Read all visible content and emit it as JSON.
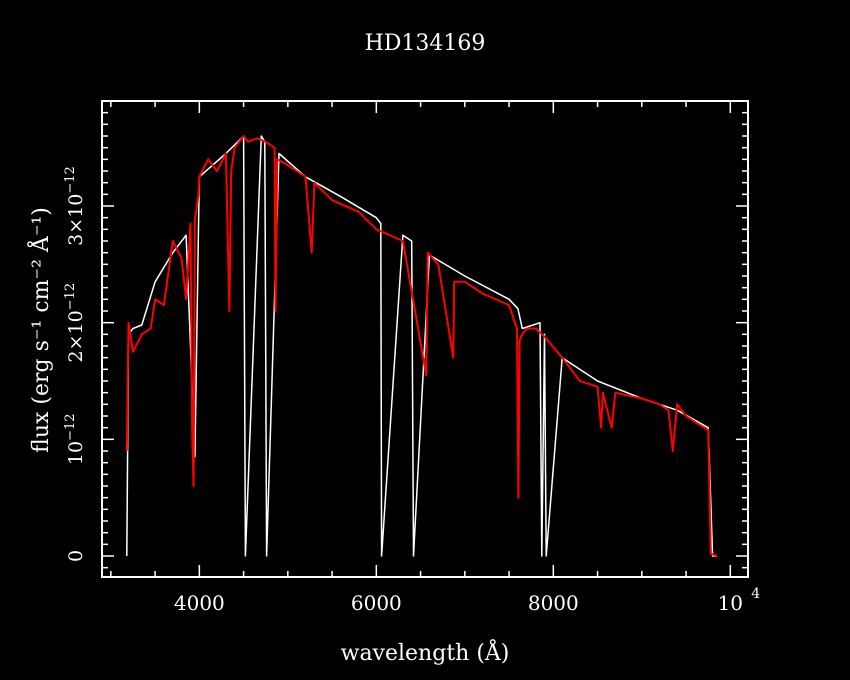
{
  "chart_data": {
    "type": "line",
    "title": "HD134169",
    "xlabel": "wavelength (Å)",
    "ylabel": "flux (erg s⁻¹ cm⁻² Å⁻¹)",
    "xlim": [
      2900,
      10200
    ],
    "ylim": [
      -1.8e-13,
      3.9e-12
    ],
    "x_ticks": [
      {
        "value": 4000,
        "label": "4000"
      },
      {
        "value": 6000,
        "label": "6000"
      },
      {
        "value": 8000,
        "label": "8000"
      },
      {
        "value": 10000,
        "label": "10",
        "exponent": "4"
      }
    ],
    "y_ticks": [
      {
        "value": 0,
        "label": "0"
      },
      {
        "value": 1e-12,
        "label": "10",
        "exponent": "−12"
      },
      {
        "value": 2e-12,
        "label": "2×10",
        "exponent": "−12"
      },
      {
        "value": 3e-12,
        "label": "3×10",
        "exponent": "−12"
      }
    ],
    "grid": false,
    "background": "#000000",
    "axis_color": "#ffffff",
    "series": [
      {
        "color": "#ffffff",
        "x": [
          3180,
          3200,
          3250,
          3350,
          3500,
          3700,
          3850,
          3950,
          4000,
          4150,
          4300,
          4500,
          4520,
          4700,
          4740,
          4760,
          4900,
          5200,
          5600,
          6000,
          6050,
          6060,
          6300,
          6400,
          6420,
          6600,
          7000,
          7500,
          7600,
          7650,
          7850,
          7870,
          7900,
          7920,
          8100,
          8500,
          9000,
          9400,
          9750,
          9800,
          9850
        ],
        "y": [
          0,
          1.9e-12,
          1.95e-12,
          1.98e-12,
          2.35e-12,
          2.6e-12,
          2.75e-12,
          8.5e-13,
          3.25e-12,
          3.35e-12,
          3.45e-12,
          3.6e-12,
          0,
          3.6e-12,
          3.55e-12,
          0,
          3.45e-12,
          3.25e-12,
          3.08e-12,
          2.9e-12,
          2.85e-12,
          0,
          2.75e-12,
          2.7e-12,
          0,
          2.58e-12,
          2.4e-12,
          2.2e-12,
          2.12e-12,
          1.95e-12,
          2e-12,
          0,
          1.9e-12,
          0,
          1.7e-12,
          1.5e-12,
          1.35e-12,
          1.25e-12,
          1.1e-12,
          0,
          0
        ]
      },
      {
        "color": "#ff0000",
        "x": [
          3180,
          3200,
          3250,
          3350,
          3450,
          3500,
          3600,
          3700,
          3800,
          3850,
          3900,
          3920,
          3935,
          3950,
          3965,
          3990,
          4000,
          4100,
          4200,
          4300,
          4340,
          4360,
          4400,
          4500,
          4550,
          4650,
          4750,
          4850,
          4861,
          4880,
          5000,
          5200,
          5270,
          5300,
          5500,
          5800,
          6000,
          6300,
          6563,
          6580,
          6700,
          6870,
          6880,
          7000,
          7200,
          7500,
          7590,
          7605,
          7620,
          7650,
          7700,
          7800,
          7900,
          8100,
          8300,
          8500,
          8540,
          8560,
          8660,
          8700,
          9000,
          9200,
          9300,
          9350,
          9400,
          9500,
          9600,
          9750,
          9780,
          9850
        ],
        "y": [
          9e-13,
          2e-12,
          1.75e-12,
          1.9e-12,
          1.95e-12,
          2.2e-12,
          2.15e-12,
          2.7e-12,
          2.55e-12,
          2.2e-12,
          2.85e-12,
          1e-12,
          6e-13,
          2.9e-12,
          2.95e-12,
          3.1e-12,
          3.25e-12,
          3.4e-12,
          3.3e-12,
          3.45e-12,
          2.1e-12,
          3.3e-12,
          3.5e-12,
          3.6e-12,
          3.55e-12,
          3.58e-12,
          3.55e-12,
          3.5e-12,
          2.1e-12,
          3.4e-12,
          3.35e-12,
          3.25e-12,
          2.6e-12,
          3.2e-12,
          3.05e-12,
          2.95e-12,
          2.8e-12,
          2.7e-12,
          1.55e-12,
          2.6e-12,
          2.5e-12,
          1.7e-12,
          2.35e-12,
          2.35e-12,
          2.25e-12,
          2.15e-12,
          1.95e-12,
          5e-13,
          1.85e-12,
          1.9e-12,
          1.95e-12,
          1.95e-12,
          1.88e-12,
          1.7e-12,
          1.5e-12,
          1.45e-12,
          1.1e-12,
          1.4e-12,
          1.1e-12,
          1.4e-12,
          1.35e-12,
          1.3e-12,
          1.25e-12,
          9e-13,
          1.3e-12,
          1.2e-12,
          1.15e-12,
          1.08e-12,
          2e-14,
          0
        ]
      }
    ]
  }
}
